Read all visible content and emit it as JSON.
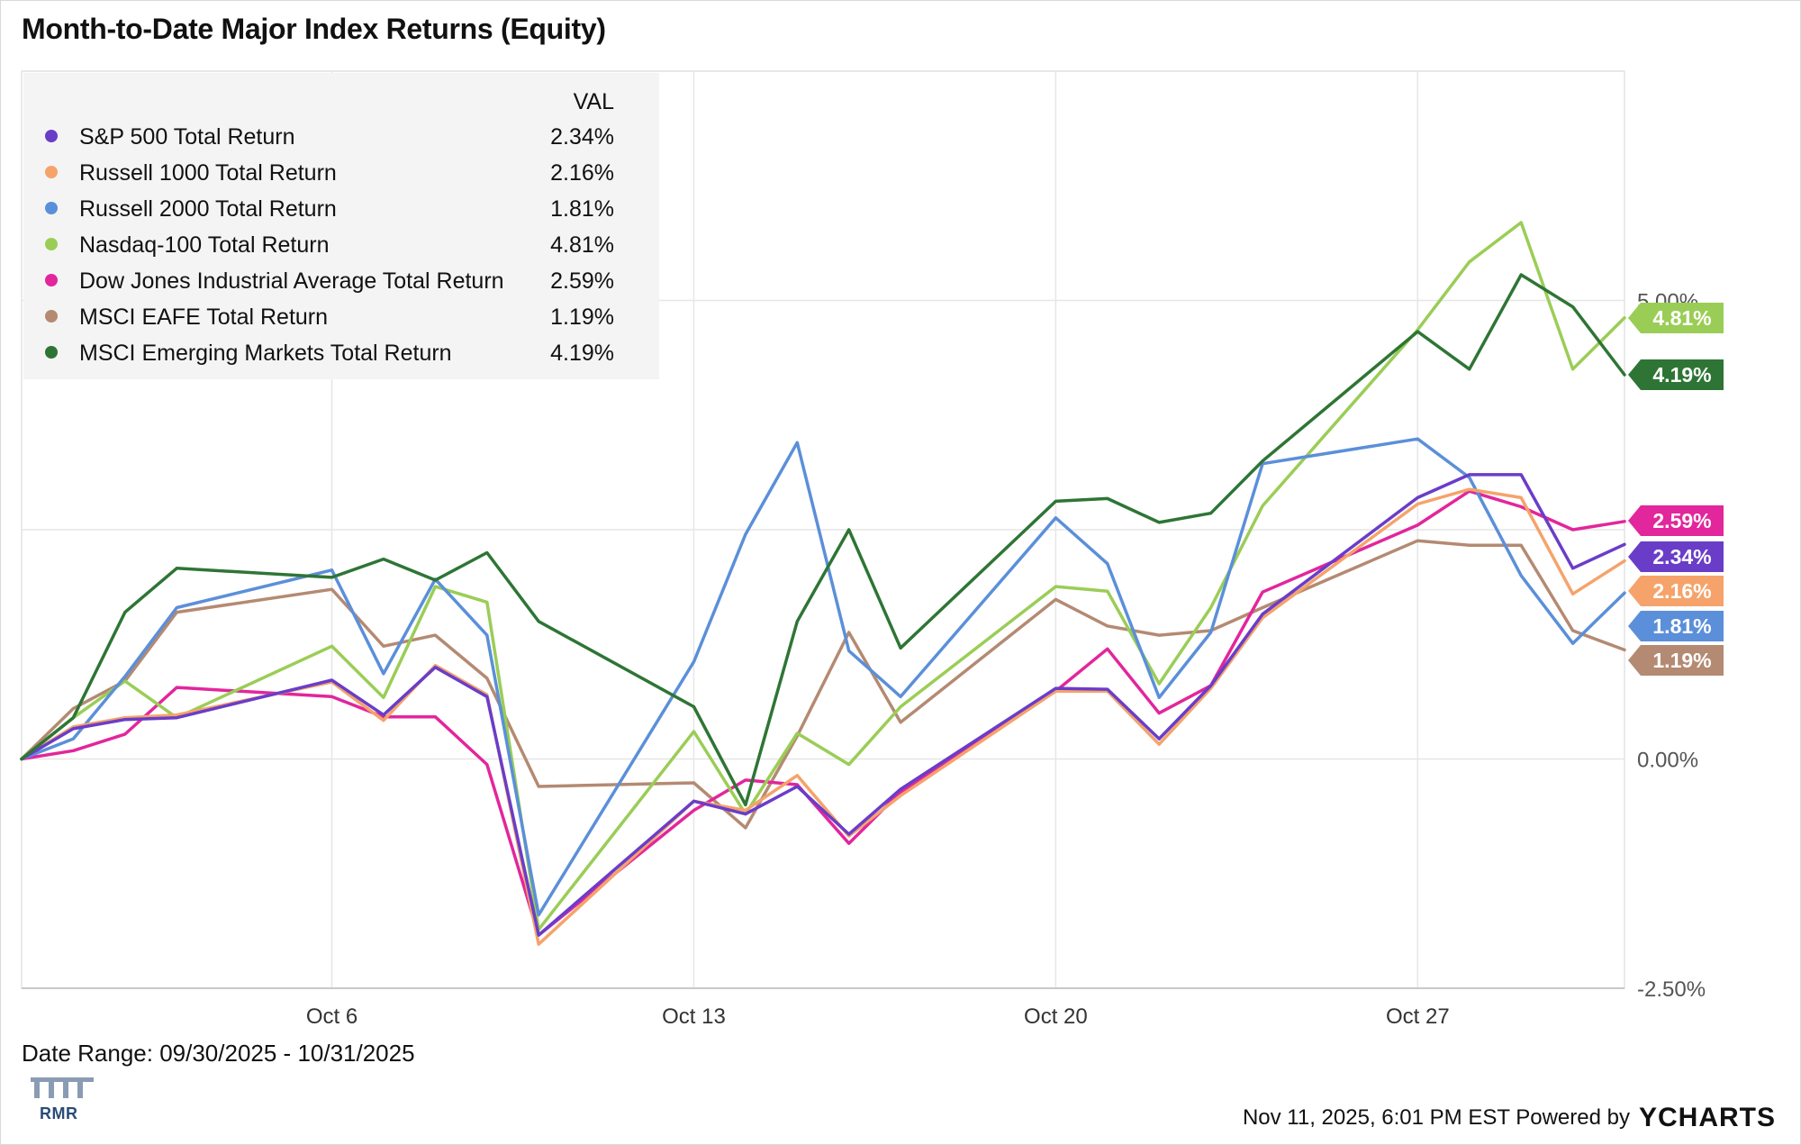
{
  "title": "Month-to-Date Major Index Returns (Equity)",
  "footer": {
    "date_range": "Date Range: 09/30/2025 - 10/31/2025",
    "timestamp": "Nov 11, 2025, 6:01 PM EST Powered by",
    "brand": "YCHARTS",
    "logo_text": "RMR"
  },
  "chart_data": {
    "type": "line",
    "title": "Month-to-Date Major Index Returns (Equity)",
    "ylim": [
      -2.5,
      7.5
    ],
    "y_ticks": [
      5,
      0,
      -2.5
    ],
    "y_tick_labels": [
      "5.00%",
      "0.00%",
      "-2.50%"
    ],
    "x_ticks": [
      {
        "index": 6,
        "label": "Oct 6"
      },
      {
        "index": 13,
        "label": "Oct 13"
      },
      {
        "index": 20,
        "label": "Oct 20"
      },
      {
        "index": 27,
        "label": "Oct 27"
      }
    ],
    "legend_header": "VAL",
    "legend_position": "top-left",
    "grid": true,
    "x": [
      "09/30",
      "10/01",
      "10/02",
      "10/03",
      "10/04",
      "10/06",
      "10/07",
      "10/08",
      "10/09",
      "10/10",
      "10/13",
      "10/14",
      "10/15",
      "10/16",
      "10/17",
      "10/20",
      "10/21",
      "10/22",
      "10/23",
      "10/24",
      "10/27",
      "10/28",
      "10/29",
      "10/30",
      "10/31"
    ],
    "x_index": [
      0,
      1,
      2,
      3,
      4,
      6,
      7,
      8,
      9,
      10,
      13,
      14,
      15,
      16,
      17,
      20,
      21,
      22,
      23,
      24,
      27,
      28,
      29,
      30,
      31
    ],
    "series": [
      {
        "name": "S&P 500 Total Return",
        "color": "#6a3dc8",
        "value_label": "2.34%",
        "values": [
          0,
          0.33,
          0.43,
          0.45,
          null,
          0.86,
          0.48,
          1.0,
          0.68,
          -1.92,
          -0.46,
          -0.6,
          -0.3,
          -0.82,
          -0.33,
          0.77,
          0.76,
          0.22,
          0.8,
          1.58,
          2.85,
          3.1,
          3.1,
          2.08,
          2.34
        ]
      },
      {
        "name": "Russell 1000 Total Return",
        "color": "#f5a36b",
        "value_label": "2.16%",
        "values": [
          0,
          0.35,
          0.45,
          0.48,
          null,
          0.84,
          0.42,
          1.02,
          0.7,
          -2.02,
          -0.46,
          -0.56,
          -0.18,
          -0.84,
          -0.4,
          0.74,
          0.74,
          0.16,
          0.77,
          1.54,
          2.78,
          2.94,
          2.85,
          1.8,
          2.16
        ]
      },
      {
        "name": "Russell 2000 Total Return",
        "color": "#5b8fd9",
        "value_label": "1.81%",
        "values": [
          0,
          0.22,
          0.9,
          1.65,
          null,
          2.06,
          0.93,
          1.96,
          1.35,
          -1.7,
          1.06,
          2.45,
          3.45,
          1.18,
          0.68,
          2.63,
          2.13,
          0.67,
          1.38,
          3.22,
          3.49,
          3.07,
          2.0,
          1.26,
          1.81
        ]
      },
      {
        "name": "Nasdaq-100 Total Return",
        "color": "#9acd56",
        "value_label": "4.81%",
        "values": [
          0,
          0.45,
          0.85,
          0.45,
          null,
          1.23,
          0.67,
          1.88,
          1.71,
          -1.86,
          0.3,
          -0.6,
          0.28,
          -0.06,
          0.57,
          1.88,
          1.83,
          0.82,
          1.65,
          2.76,
          4.68,
          5.42,
          5.85,
          4.25,
          4.81
        ]
      },
      {
        "name": "Dow Jones Industrial Average Total Return",
        "color": "#e2269c",
        "value_label": "2.59%",
        "values": [
          0,
          0.09,
          0.27,
          0.78,
          null,
          0.68,
          0.46,
          0.46,
          -0.06,
          -1.92,
          -0.56,
          -0.23,
          -0.28,
          -0.92,
          -0.36,
          0.74,
          1.2,
          0.5,
          0.8,
          1.82,
          2.55,
          2.92,
          2.75,
          2.5,
          2.59
        ]
      },
      {
        "name": "MSCI EAFE Total Return",
        "color": "#b48a72",
        "value_label": "1.19%",
        "values": [
          0,
          0.55,
          0.85,
          1.6,
          null,
          1.85,
          1.23,
          1.35,
          0.88,
          -0.3,
          -0.26,
          -0.75,
          0.25,
          1.38,
          0.4,
          1.74,
          1.45,
          1.35,
          1.4,
          1.65,
          2.38,
          2.33,
          2.33,
          1.4,
          1.19
        ]
      },
      {
        "name": "MSCI Emerging Markets Total Return",
        "color": "#2e7535",
        "value_label": "4.19%",
        "values": [
          0,
          0.45,
          1.6,
          2.08,
          null,
          1.98,
          2.18,
          1.95,
          2.25,
          1.5,
          0.57,
          -0.5,
          1.5,
          2.5,
          1.21,
          2.81,
          2.84,
          2.58,
          2.68,
          3.25,
          4.66,
          4.25,
          5.28,
          4.93,
          4.19
        ]
      }
    ],
    "end_labels_order": [
      "Nasdaq-100 Total Return",
      "MSCI Emerging Markets Total Return",
      "Dow Jones Industrial Average Total Return",
      "S&P 500 Total Return",
      "Russell 1000 Total Return",
      "Russell 2000 Total Return",
      "MSCI EAFE Total Return"
    ]
  }
}
